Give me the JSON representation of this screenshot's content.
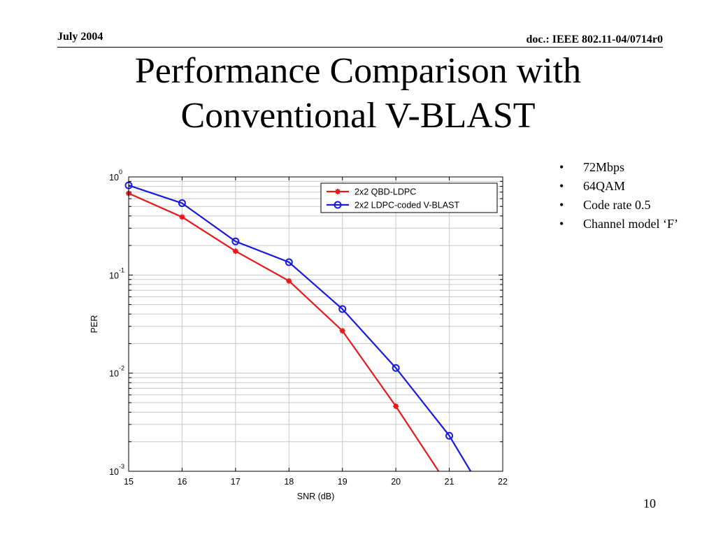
{
  "header": {
    "date": "July 2004",
    "doc": "doc.: IEEE 802.11-04/0714r0"
  },
  "slide": {
    "title_line1": "Performance Comparison with",
    "title_line2": "Conventional V-BLAST",
    "page_number": "10",
    "bullets": [
      "72Mbps",
      "64QAM",
      "Code rate 0.5",
      "Channel model ‘F’"
    ],
    "bullet_glyph": "•"
  },
  "chart_data": {
    "type": "line",
    "xlabel": "SNR (dB)",
    "ylabel": "PER",
    "xlim": [
      15,
      22
    ],
    "ylim": [
      0.001,
      1
    ],
    "yscale": "log",
    "grid": true,
    "legend_position": "top-right",
    "x_ticks": [
      "15",
      "16",
      "17",
      "18",
      "19",
      "20",
      "21",
      "22"
    ],
    "y_ticks": [
      {
        "base": "10",
        "exp": "-3",
        "value": 0.001
      },
      {
        "base": "10",
        "exp": "-2",
        "value": 0.01
      },
      {
        "base": "10",
        "exp": "-1",
        "value": 0.1
      },
      {
        "base": "10",
        "exp": "0",
        "value": 1
      }
    ],
    "series": [
      {
        "name": "2x2 QBD-LDPC",
        "color": "#e8191c",
        "marker": "star",
        "x": [
          15,
          16,
          17,
          18,
          19,
          20,
          20.8
        ],
        "y": [
          0.68,
          0.39,
          0.175,
          0.087,
          0.027,
          0.0046,
          0.001
        ]
      },
      {
        "name": "2x2 LDPC-coded V-BLAST",
        "color": "#1a1adc",
        "marker": "circle",
        "x": [
          15,
          16,
          17,
          18,
          19,
          20,
          21,
          21.4
        ],
        "y": [
          0.82,
          0.54,
          0.22,
          0.135,
          0.045,
          0.0113,
          0.0023,
          0.001
        ]
      }
    ]
  }
}
